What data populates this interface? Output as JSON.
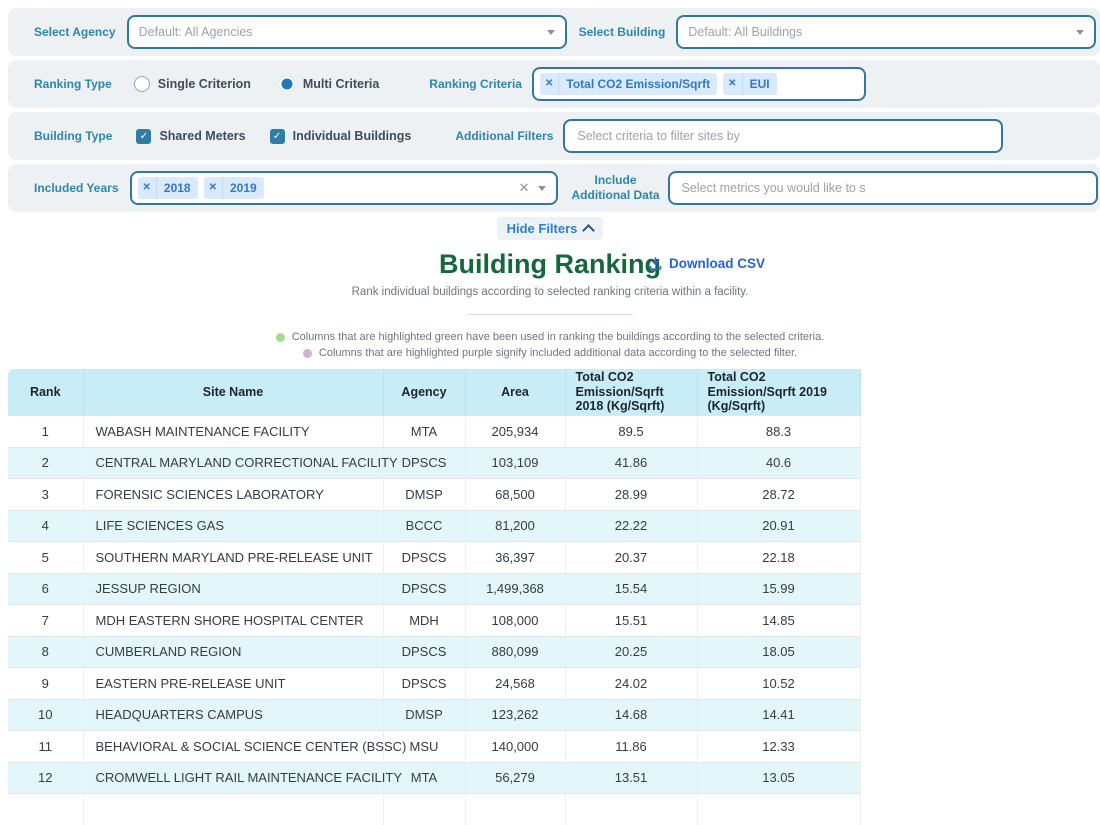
{
  "filters": {
    "select_agency": {
      "label": "Select Agency",
      "value": "Default: All Agencies"
    },
    "select_building": {
      "label": "Select Building",
      "value": "Default: All Buildings"
    },
    "ranking_type": {
      "label": "Ranking Type",
      "options": [
        {
          "label": "Single Criterion",
          "selected": false
        },
        {
          "label": "Multi Criteria",
          "selected": true
        }
      ]
    },
    "ranking_criteria": {
      "label": "Ranking Criteria",
      "chips": [
        "Total CO2 Emission/Sqrft",
        "EUI"
      ]
    },
    "building_type": {
      "label": "Building Type",
      "options": [
        {
          "label": "Shared Meters",
          "checked": true
        },
        {
          "label": "Individual Buildings",
          "checked": true
        }
      ]
    },
    "additional_filters": {
      "label": "Additional Filters",
      "placeholder": "Select criteria to filter sites by"
    },
    "included_years": {
      "label": "Included Years",
      "chips": [
        "2018",
        "2019"
      ]
    },
    "include_additional_data": {
      "label": "Include Additional Data",
      "placeholder": "Select metrics you would like to s"
    }
  },
  "actions": {
    "hide_filters": "Hide Filters",
    "download_csv": "Download CSV"
  },
  "header": {
    "title": "Building Ranking",
    "subtitle": "Rank individual buildings according to selected ranking criteria within a facility."
  },
  "legend": [
    {
      "dot_color": "#a9da8c",
      "text": "Columns that are highlighted green have been used in ranking the buildings according to the selected criteria."
    },
    {
      "dot_color": "#d5aede",
      "text": "Columns that are highlighted purple signify included additional data according to the selected filter."
    }
  ],
  "table": {
    "columns": [
      "Rank",
      "Site Name",
      "Agency",
      "Area",
      "Total CO2 Emission/Sqrft 2018 (Kg/Sqrft)",
      "Total CO2 Emission/Sqrft 2019 (Kg/Sqrft)"
    ],
    "rows": [
      [
        "1",
        "WABASH MAINTENANCE FACILITY",
        "MTA",
        "205,934",
        "89.5",
        "88.3"
      ],
      [
        "2",
        "CENTRAL MARYLAND CORRECTIONAL FACILITY",
        "DPSCS",
        "103,109",
        "41.86",
        "40.6"
      ],
      [
        "3",
        "FORENSIC SCIENCES LABORATORY",
        "DMSP",
        "68,500",
        "28.99",
        "28.72"
      ],
      [
        "4",
        "LIFE SCIENCES GAS",
        "BCCC",
        "81,200",
        "22.22",
        "20.91"
      ],
      [
        "5",
        "SOUTHERN MARYLAND PRE-RELEASE UNIT",
        "DPSCS",
        "36,397",
        "20.37",
        "22.18"
      ],
      [
        "6",
        "JESSUP REGION",
        "DPSCS",
        "1,499,368",
        "15.54",
        "15.99"
      ],
      [
        "7",
        "MDH EASTERN SHORE HOSPITAL CENTER",
        "MDH",
        "108,000",
        "15.51",
        "14.85"
      ],
      [
        "8",
        "CUMBERLAND REGION",
        "DPSCS",
        "880,099",
        "20.25",
        "18.05"
      ],
      [
        "9",
        "EASTERN PRE-RELEASE UNIT",
        "DPSCS",
        "24,568",
        "24.02",
        "10.52"
      ],
      [
        "10",
        "HEADQUARTERS CAMPUS",
        "DMSP",
        "123,262",
        "14.68",
        "14.41"
      ],
      [
        "11",
        "BEHAVIORAL & SOCIAL SCIENCE CENTER (BSSC)",
        "MSU",
        "140,000",
        "11.86",
        "12.33"
      ],
      [
        "12",
        "CROMWELL LIGHT RAIL MAINTENANCE FACILITY",
        "MTA",
        "56,279",
        "13.51",
        "13.05"
      ]
    ]
  },
  "colors": {
    "label_teal": "#2c87a8",
    "control_border": "#33789b",
    "chip_bg": "#d9eafc",
    "chip_text": "#3178c6",
    "title_green": "#17673c",
    "download_blue": "#2563d9",
    "header_bg": "#c9edf6",
    "zebra_row": "#e3f7fa",
    "band_bg": "#edf1f4"
  }
}
